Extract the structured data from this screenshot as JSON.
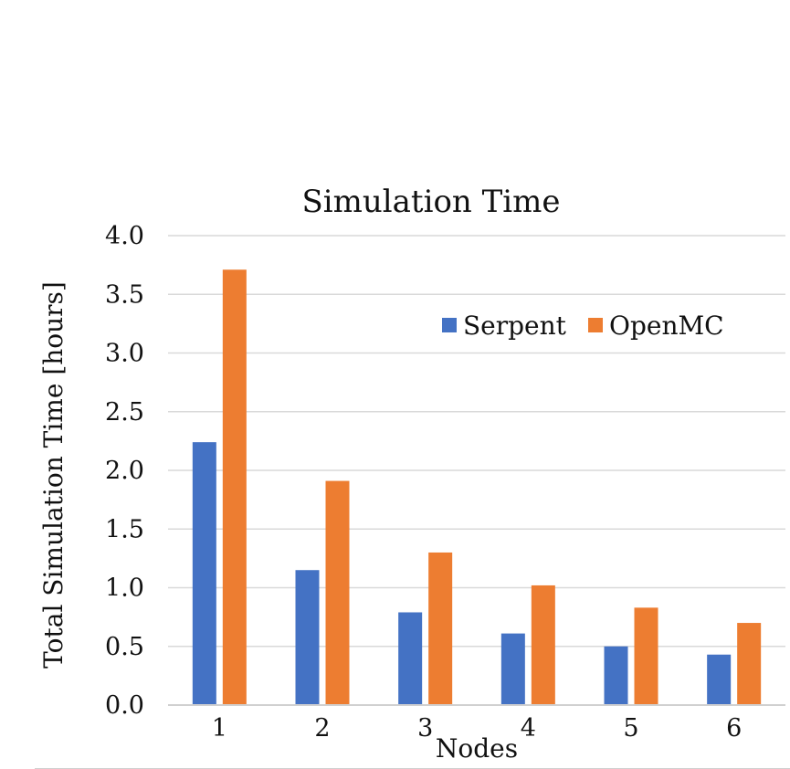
{
  "chart_data": {
    "type": "bar",
    "title": "Simulation Time",
    "xlabel": "Nodes",
    "ylabel": "Total Simulation Time [hours]",
    "categories": [
      "1",
      "2",
      "3",
      "4",
      "5",
      "6"
    ],
    "series": [
      {
        "name": "Serpent",
        "color": "#4472c4",
        "values": [
          2.24,
          1.15,
          0.79,
          0.61,
          0.5,
          0.43
        ]
      },
      {
        "name": "OpenMC",
        "color": "#ed7d31",
        "values": [
          3.71,
          1.91,
          1.3,
          1.02,
          0.83,
          0.7
        ]
      }
    ],
    "ylim": [
      0,
      4
    ],
    "yticks": [
      "0.0",
      "0.5",
      "1.0",
      "1.5",
      "2.0",
      "2.5",
      "3.0",
      "3.5",
      "4.0"
    ],
    "ytick_values": [
      0,
      0.5,
      1,
      1.5,
      2,
      2.5,
      3,
      3.5,
      4
    ],
    "grid": true,
    "legend": "top-right"
  }
}
